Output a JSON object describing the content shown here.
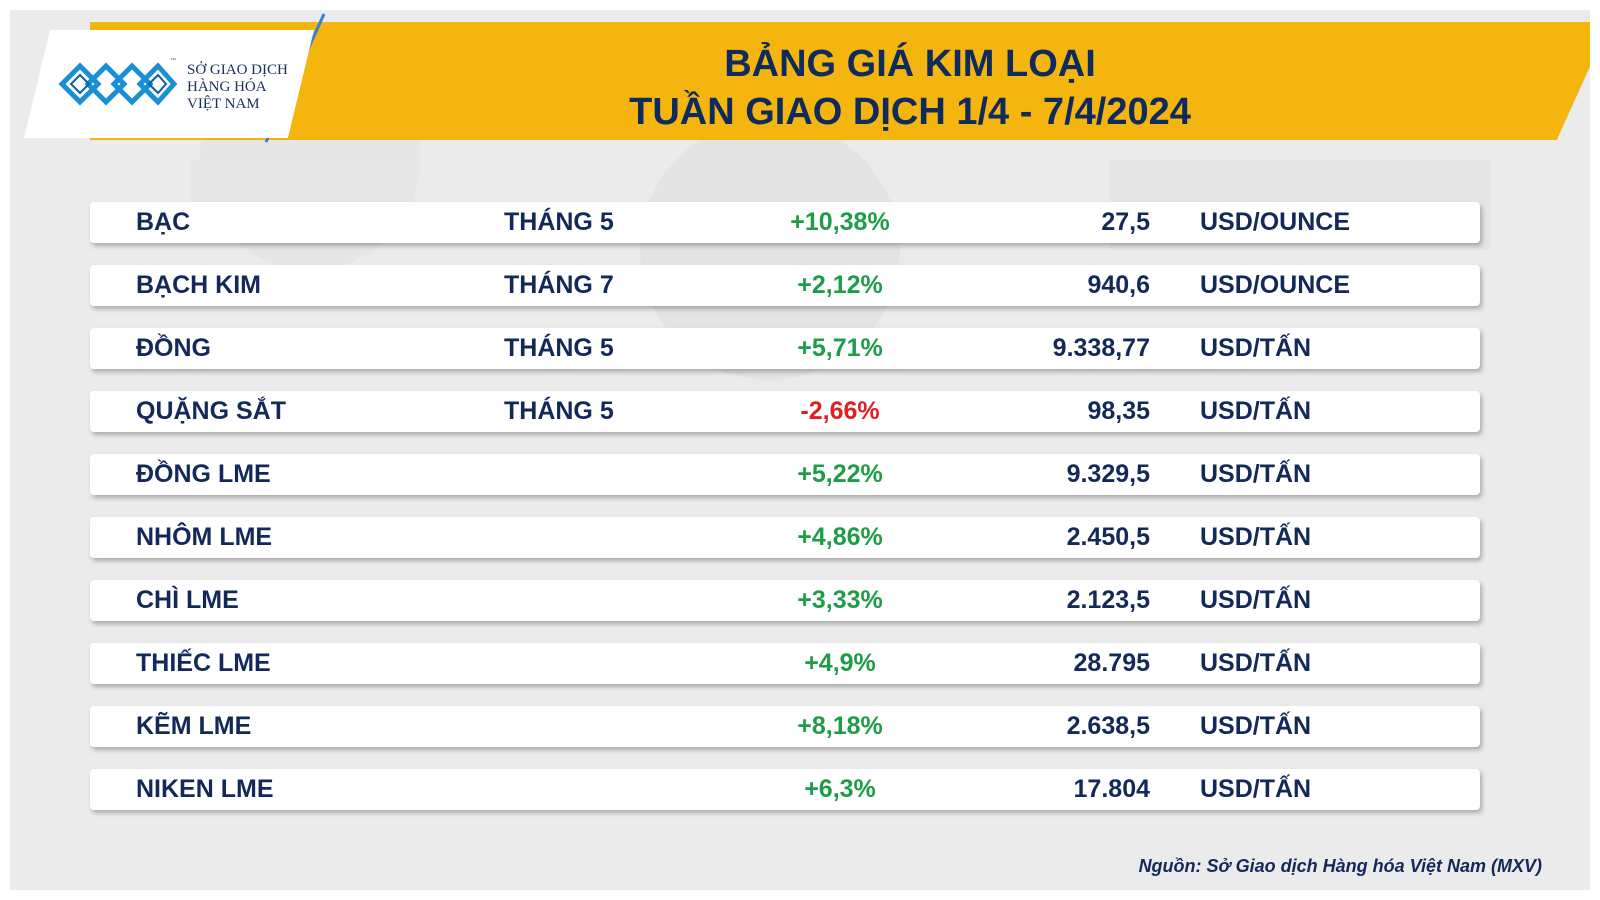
{
  "logo": {
    "tm": "™",
    "lines": [
      "SỞ GIAO DỊCH",
      "HÀNG HÓA",
      "VIỆT NAM"
    ],
    "icon": "mxv-logo-icon",
    "color": "#1a8fd6"
  },
  "header": {
    "title_line1": "BẢNG GIÁ KIM LOẠI",
    "title_line2": "TUẦN GIAO DỊCH 1/4 - 7/4/2024",
    "banner_color": "#f5b50f"
  },
  "colors": {
    "text": "#12295a",
    "positive": "#1f9c48",
    "negative": "#e02020"
  },
  "rows": [
    {
      "name": "BẠC",
      "month": "THÁNG 5",
      "change": "+10,38%",
      "direction": "up",
      "price": "27,5",
      "unit": "USD/OUNCE"
    },
    {
      "name": "BẠCH KIM",
      "month": "THÁNG 7",
      "change": "+2,12%",
      "direction": "up",
      "price": "940,6",
      "unit": "USD/OUNCE"
    },
    {
      "name": "ĐỒNG",
      "month": "THÁNG 5",
      "change": "+5,71%",
      "direction": "up",
      "price": "9.338,77",
      "unit": "USD/TẤN"
    },
    {
      "name": "QUẶNG SẮT",
      "month": "THÁNG 5",
      "change": "-2,66%",
      "direction": "down",
      "price": "98,35",
      "unit": "USD/TẤN"
    },
    {
      "name": "ĐỒNG LME",
      "month": "",
      "change": "+5,22%",
      "direction": "up",
      "price": "9.329,5",
      "unit": "USD/TẤN"
    },
    {
      "name": "NHÔM LME",
      "month": "",
      "change": "+4,86%",
      "direction": "up",
      "price": "2.450,5",
      "unit": "USD/TẤN"
    },
    {
      "name": "CHÌ LME",
      "month": "",
      "change": "+3,33%",
      "direction": "up",
      "price": "2.123,5",
      "unit": "USD/TẤN"
    },
    {
      "name": "THIẾC LME",
      "month": "",
      "change": "+4,9%",
      "direction": "up",
      "price": "28.795",
      "unit": "USD/TẤN"
    },
    {
      "name": "KẼM LME",
      "month": "",
      "change": "+8,18%",
      "direction": "up",
      "price": "2.638,5",
      "unit": "USD/TẤN"
    },
    {
      "name": "NIKEN LME",
      "month": "",
      "change": "+6,3%",
      "direction": "up",
      "price": "17.804",
      "unit": "USD/TẤN"
    }
  ],
  "footer": {
    "source": "Nguồn: Sở Giao dịch Hàng hóa Việt Nam (MXV)"
  }
}
